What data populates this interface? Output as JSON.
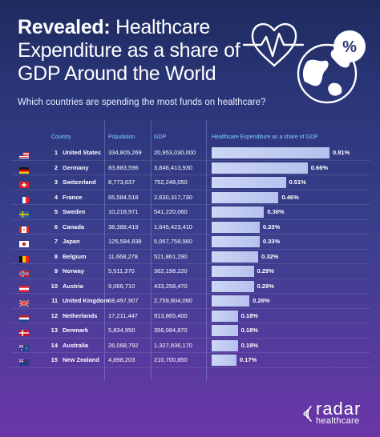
{
  "title": {
    "bold": "Revealed:",
    "rest": " Healthcare Expenditure as a share of GDP Around the World"
  },
  "subtitle": "Which countries are spending the most funds on healthcare?",
  "chart_data": {
    "type": "table",
    "columns": [
      "Country",
      "Population",
      "GDP",
      "Healthcare Expenditure as a share of GDP"
    ],
    "rows": [
      {
        "rank": "1",
        "country": "United States",
        "population": "334,805,269",
        "gdp": "20,953,030,000",
        "share": 0.81,
        "share_label": "0.81%",
        "flag": "us"
      },
      {
        "rank": "2",
        "country": "Germany",
        "population": "83,883,596",
        "gdp": "3,846,413,930",
        "share": 0.66,
        "share_label": "0.66%",
        "flag": "de"
      },
      {
        "rank": "3",
        "country": "Switzerland",
        "population": "8,773,637",
        "gdp": "752,248,050",
        "share": 0.51,
        "share_label": "0.51%",
        "flag": "ch"
      },
      {
        "rank": "4",
        "country": "France",
        "population": "65,584,518",
        "gdp": "2,630,317,730",
        "share": 0.46,
        "share_label": "0.46%",
        "flag": "fr"
      },
      {
        "rank": "5",
        "country": "Sweden",
        "population": "10,218,971",
        "gdp": "541,220,060",
        "share": 0.36,
        "share_label": "0.36%",
        "flag": "se"
      },
      {
        "rank": "6",
        "country": "Canada",
        "population": "38,388,419",
        "gdp": "1,645,423,410",
        "share": 0.33,
        "share_label": "0.33%",
        "flag": "ca"
      },
      {
        "rank": "7",
        "country": "Japan",
        "population": "125,584,838",
        "gdp": "5,057,758,960",
        "share": 0.33,
        "share_label": "0.33%",
        "flag": "jp"
      },
      {
        "rank": "8",
        "country": "Belgium",
        "population": "11,668,278",
        "gdp": "521,861,290",
        "share": 0.32,
        "share_label": "0.32%",
        "flag": "be"
      },
      {
        "rank": "9",
        "country": "Norway",
        "population": "5,511,370",
        "gdp": "362,198,220",
        "share": 0.29,
        "share_label": "0.29%",
        "flag": "no"
      },
      {
        "rank": "10",
        "country": "Austria",
        "population": "9,066,710",
        "gdp": "433,258,470",
        "share": 0.29,
        "share_label": "0.29%",
        "flag": "at"
      },
      {
        "rank": "11",
        "country": "United Kingdom",
        "population": "68,497,907",
        "gdp": "2,759,804,060",
        "share": 0.26,
        "share_label": "0.26%",
        "flag": "gb"
      },
      {
        "rank": "12",
        "country": "Netherlands",
        "population": "17,211,447",
        "gdp": "913,865,400",
        "share": 0.18,
        "share_label": "0.18%",
        "flag": "nl"
      },
      {
        "rank": "13",
        "country": "Denmark",
        "population": "5,834,950",
        "gdp": "356,084,870",
        "share": 0.18,
        "share_label": "0.18%",
        "flag": "dk"
      },
      {
        "rank": "14",
        "country": "Australia",
        "population": "26,068,792",
        "gdp": "1,327,836,170",
        "share": 0.18,
        "share_label": "0.18%",
        "flag": "au"
      },
      {
        "rank": "15",
        "country": "New Zealand",
        "population": "4,898,203",
        "gdp": "210,700,850",
        "share": 0.17,
        "share_label": "0.17%",
        "flag": "nz"
      }
    ]
  },
  "logo": {
    "word": "radar",
    "sub": "healthcare"
  },
  "colors": {
    "header_text": "#7fd3ff",
    "bar": "#c3cdf2",
    "background_top": "#1e2a5e",
    "background_bottom": "#6b35a8"
  },
  "icons": [
    "heart-pulse-icon",
    "globe-icon",
    "percent-icon"
  ]
}
